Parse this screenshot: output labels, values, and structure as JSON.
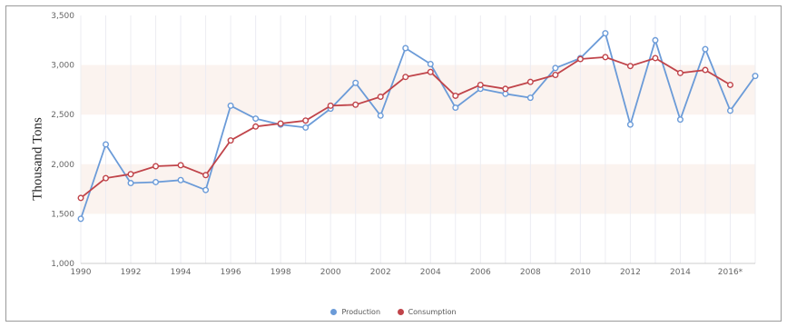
{
  "chart_data": {
    "type": "line",
    "ylabel": "Thousand Tons",
    "ylim": [
      1000,
      3500
    ],
    "yticks": [
      "1,000",
      "1,500",
      "2,000",
      "2,500",
      "3,000",
      "3,500"
    ],
    "yticks_values": [
      1000,
      1500,
      2000,
      2500,
      3000,
      3500
    ],
    "xticks": [
      "1990",
      "1992",
      "1994",
      "1996",
      "1998",
      "2000",
      "2002",
      "2004",
      "2006",
      "2008",
      "2010",
      "2012",
      "2014",
      "2016*"
    ],
    "x": [
      1990,
      1991,
      1992,
      1993,
      1994,
      1995,
      1996,
      1997,
      1998,
      1999,
      2000,
      2001,
      2002,
      2003,
      2004,
      2005,
      2006,
      2007,
      2008,
      2009,
      2010,
      2011,
      2012,
      2013,
      2014,
      2015,
      2016,
      2017
    ],
    "bands": [
      [
        1500,
        2000
      ],
      [
        2500,
        3000
      ]
    ],
    "grid": "vertical",
    "legend_position": "bottom-center",
    "series": [
      {
        "name": "Production",
        "color": "#6b9bd8",
        "values": [
          1450,
          2200,
          1810,
          1820,
          1840,
          1740,
          2590,
          2460,
          2400,
          2370,
          2560,
          2820,
          2490,
          3170,
          3010,
          2570,
          2760,
          2710,
          2670,
          2970,
          3070,
          3320,
          2400,
          3250,
          2450,
          3160,
          2540,
          2890
        ]
      },
      {
        "name": "Consumption",
        "color": "#c0444a",
        "values": [
          1660,
          1860,
          1900,
          1980,
          1990,
          1890,
          2240,
          2380,
          2410,
          2440,
          2590,
          2600,
          2680,
          2880,
          2930,
          2690,
          2800,
          2760,
          2830,
          2900,
          3060,
          3080,
          2990,
          3070,
          2920,
          2950,
          2800,
          null
        ]
      }
    ]
  }
}
